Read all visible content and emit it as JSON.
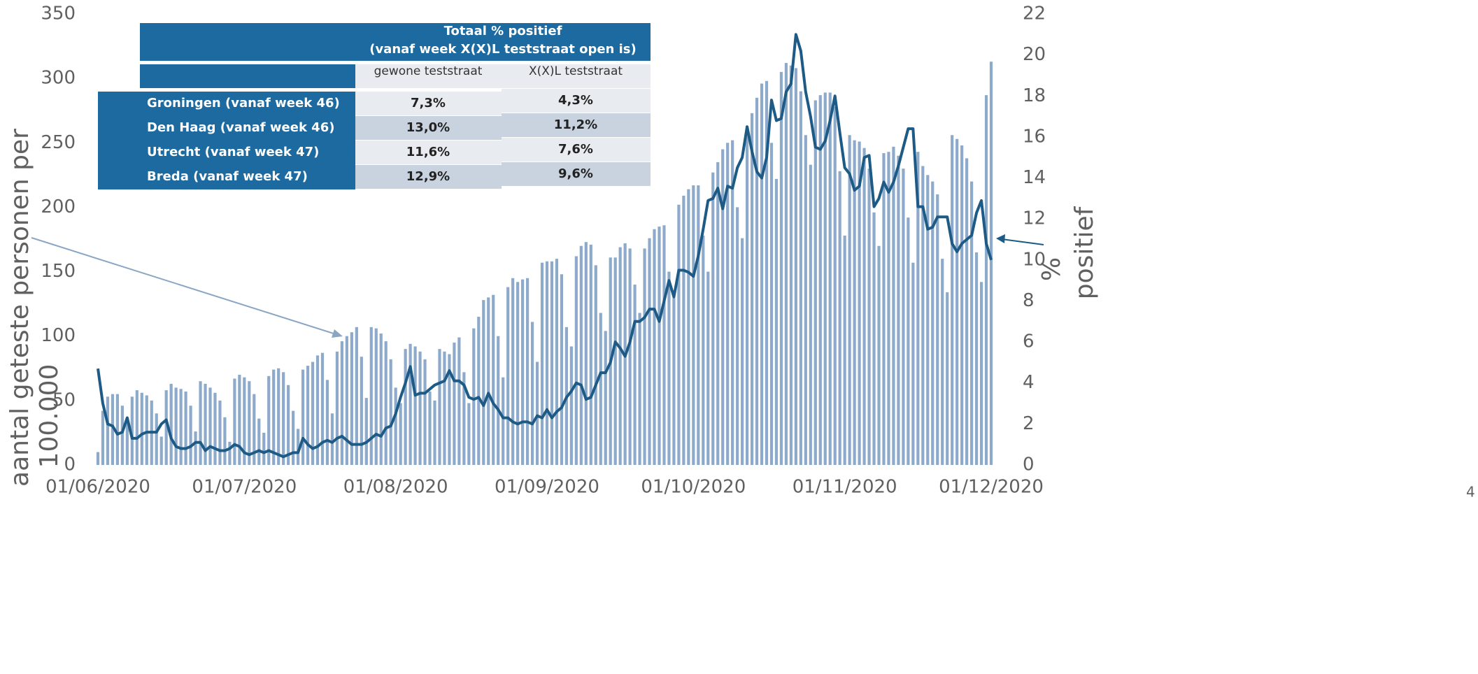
{
  "chart_data": {
    "type": "combo",
    "categories": [
      "01/06/2020",
      null,
      null,
      null,
      null,
      null,
      null,
      null,
      null,
      null,
      null,
      null,
      null,
      null,
      null,
      null,
      null,
      null,
      null,
      null,
      null,
      null,
      null,
      null,
      null,
      null,
      null,
      null,
      null,
      null,
      "01/07/2020",
      null,
      null,
      null,
      null,
      null,
      null,
      null,
      null,
      null,
      null,
      null,
      null,
      null,
      null,
      null,
      null,
      null,
      null,
      null,
      null,
      null,
      null,
      null,
      null,
      null,
      null,
      null,
      null,
      null,
      null,
      "01/08/2020",
      null,
      null,
      null,
      null,
      null,
      null,
      null,
      null,
      null,
      null,
      null,
      null,
      null,
      null,
      null,
      null,
      null,
      null,
      null,
      null,
      null,
      null,
      null,
      null,
      null,
      null,
      null,
      null,
      null,
      null,
      "01/09/2020",
      null,
      null,
      null,
      null,
      null,
      null,
      null,
      null,
      null,
      null,
      null,
      null,
      null,
      null,
      null,
      null,
      null,
      null,
      null,
      null,
      null,
      null,
      null,
      null,
      null,
      null,
      null,
      null,
      null,
      "01/10/2020",
      null,
      null,
      null,
      null,
      null,
      null,
      null,
      null,
      null,
      null,
      null,
      null,
      null,
      null,
      null,
      null,
      null,
      null,
      null,
      null,
      null,
      null,
      null,
      null,
      null,
      null,
      null,
      null,
      null,
      null,
      "01/11/2020",
      null,
      null,
      null,
      null,
      null,
      null,
      null,
      null,
      null,
      null,
      null,
      null,
      null,
      null,
      null,
      null,
      null,
      null,
      null,
      null,
      null,
      null,
      null,
      null,
      null,
      null,
      null,
      null,
      null,
      "01/12/2020"
    ],
    "series": [
      {
        "type": "bar",
        "color": "#8eaacb",
        "values": [
          10,
          42,
          53,
          55,
          55,
          46,
          37,
          53,
          58,
          56,
          54,
          50,
          40,
          22,
          58,
          63,
          60,
          59,
          57,
          46,
          26,
          65,
          63,
          60,
          56,
          50,
          37,
          18,
          67,
          70,
          68,
          65,
          55,
          36,
          25,
          69,
          74,
          75,
          72,
          62,
          42,
          28,
          74,
          77,
          80,
          85,
          87,
          66,
          40,
          88,
          96,
          100,
          103,
          107,
          84,
          52,
          107,
          106,
          102,
          96,
          82,
          60,
          48,
          90,
          94,
          92,
          88,
          82,
          57,
          50,
          90,
          88,
          86,
          95,
          99,
          72,
          48,
          106,
          115,
          128,
          130,
          132,
          100,
          68,
          138,
          145,
          142,
          144,
          145,
          111,
          80,
          157,
          158,
          158,
          160,
          148,
          107,
          92,
          162,
          170,
          173,
          171,
          155,
          118,
          104,
          161,
          161,
          169,
          172,
          168,
          140,
          118,
          168,
          176,
          183,
          185,
          186,
          150,
          130,
          202,
          209,
          214,
          217,
          217,
          178,
          150,
          227,
          235,
          245,
          250,
          252,
          200,
          176,
          263,
          273,
          285,
          296,
          298,
          250,
          222,
          305,
          312,
          310,
          308,
          290,
          256,
          233,
          283,
          287,
          289,
          289,
          278,
          228,
          178,
          256,
          252,
          251,
          246,
          230,
          196,
          170,
          242,
          243,
          247,
          240,
          230,
          192,
          157,
          243,
          232,
          225,
          220,
          210,
          160,
          134,
          256,
          253,
          248,
          238,
          220,
          165,
          142,
          287,
          313
        ]
      },
      {
        "type": "line",
        "axis": "y2",
        "color": "#1d5a85",
        "values": [
          4.7,
          3.0,
          2.0,
          1.9,
          1.5,
          1.6,
          2.3,
          1.3,
          1.3,
          1.5,
          1.6,
          1.6,
          1.6,
          2.0,
          2.2,
          1.3,
          0.9,
          0.8,
          0.8,
          0.9,
          1.1,
          1.1,
          0.7,
          0.9,
          0.8,
          0.7,
          0.7,
          0.8,
          1.0,
          0.9,
          0.6,
          0.5,
          0.6,
          0.7,
          0.6,
          0.7,
          0.6,
          0.5,
          0.4,
          0.5,
          0.6,
          0.6,
          1.3,
          1.0,
          0.8,
          0.9,
          1.1,
          1.2,
          1.1,
          1.3,
          1.4,
          1.2,
          1.0,
          1.0,
          1.0,
          1.1,
          1.3,
          1.5,
          1.4,
          1.8,
          1.9,
          2.5,
          3.3,
          4.0,
          4.8,
          3.4,
          3.5,
          3.5,
          3.7,
          3.9,
          4.0,
          4.1,
          4.6,
          4.1,
          4.1,
          3.9,
          3.3,
          3.2,
          3.3,
          2.9,
          3.5,
          3.0,
          2.7,
          2.3,
          2.3,
          2.1,
          2.0,
          2.1,
          2.1,
          2.0,
          2.4,
          2.3,
          2.7,
          2.3,
          2.6,
          2.8,
          3.3,
          3.6,
          4.0,
          3.9,
          3.2,
          3.3,
          3.9,
          4.5,
          4.5,
          5.0,
          6.0,
          5.7,
          5.3,
          6.0,
          7.0,
          7.0,
          7.2,
          7.6,
          7.6,
          7.0,
          8.0,
          9.0,
          8.2,
          9.5,
          9.5,
          9.4,
          9.2,
          10.2,
          11.5,
          12.9,
          13.0,
          13.5,
          12.5,
          13.6,
          13.5,
          14.5,
          15.0,
          16.5,
          15.3,
          14.3,
          14.0,
          15.0,
          17.8,
          16.8,
          16.9,
          18.2,
          18.6,
          21.0,
          20.2,
          18.2,
          17.0,
          15.5,
          15.4,
          15.8,
          16.8,
          18.0,
          16.2,
          14.5,
          14.2,
          13.4,
          13.6,
          15.0,
          15.1,
          12.6,
          13.0,
          13.8,
          13.3,
          13.8,
          14.6,
          15.5,
          16.4,
          16.4,
          12.6,
          12.6,
          11.5,
          11.6,
          12.1,
          12.1,
          12.1,
          10.8,
          10.4,
          10.8,
          11.0,
          11.2,
          12.3,
          12.9,
          10.8,
          10.0
        ]
      }
    ],
    "ylim": [
      0,
      350
    ],
    "yticks": [
      0,
      50,
      100,
      150,
      200,
      250,
      300,
      350
    ],
    "y2lim": [
      0,
      22
    ],
    "y2ticks": [
      0,
      2,
      4,
      6,
      8,
      10,
      12,
      14,
      16,
      18,
      20,
      22
    ],
    "ylabel": [
      "aantal geteste personen per",
      "100.000"
    ],
    "y2label": [
      "%",
      "positief"
    ]
  },
  "table": {
    "title": [
      "Totaal % positief",
      "(vanaf week X(X)L teststraat open is)"
    ],
    "columns": [
      "gewone teststraat",
      "X(X)L teststraat"
    ],
    "rows": [
      [
        "Groningen (vanaf week 46)",
        "7,3%",
        "4,3%"
      ],
      [
        "Den Haag (vanaf week 46)",
        "13,0%",
        "11,2%"
      ],
      [
        "Utrecht (vanaf week 47)",
        "11,6%",
        "7,6%"
      ],
      [
        "Breda (vanaf week 47)",
        "12,9%",
        "9,6%"
      ]
    ]
  },
  "page_number": "4"
}
